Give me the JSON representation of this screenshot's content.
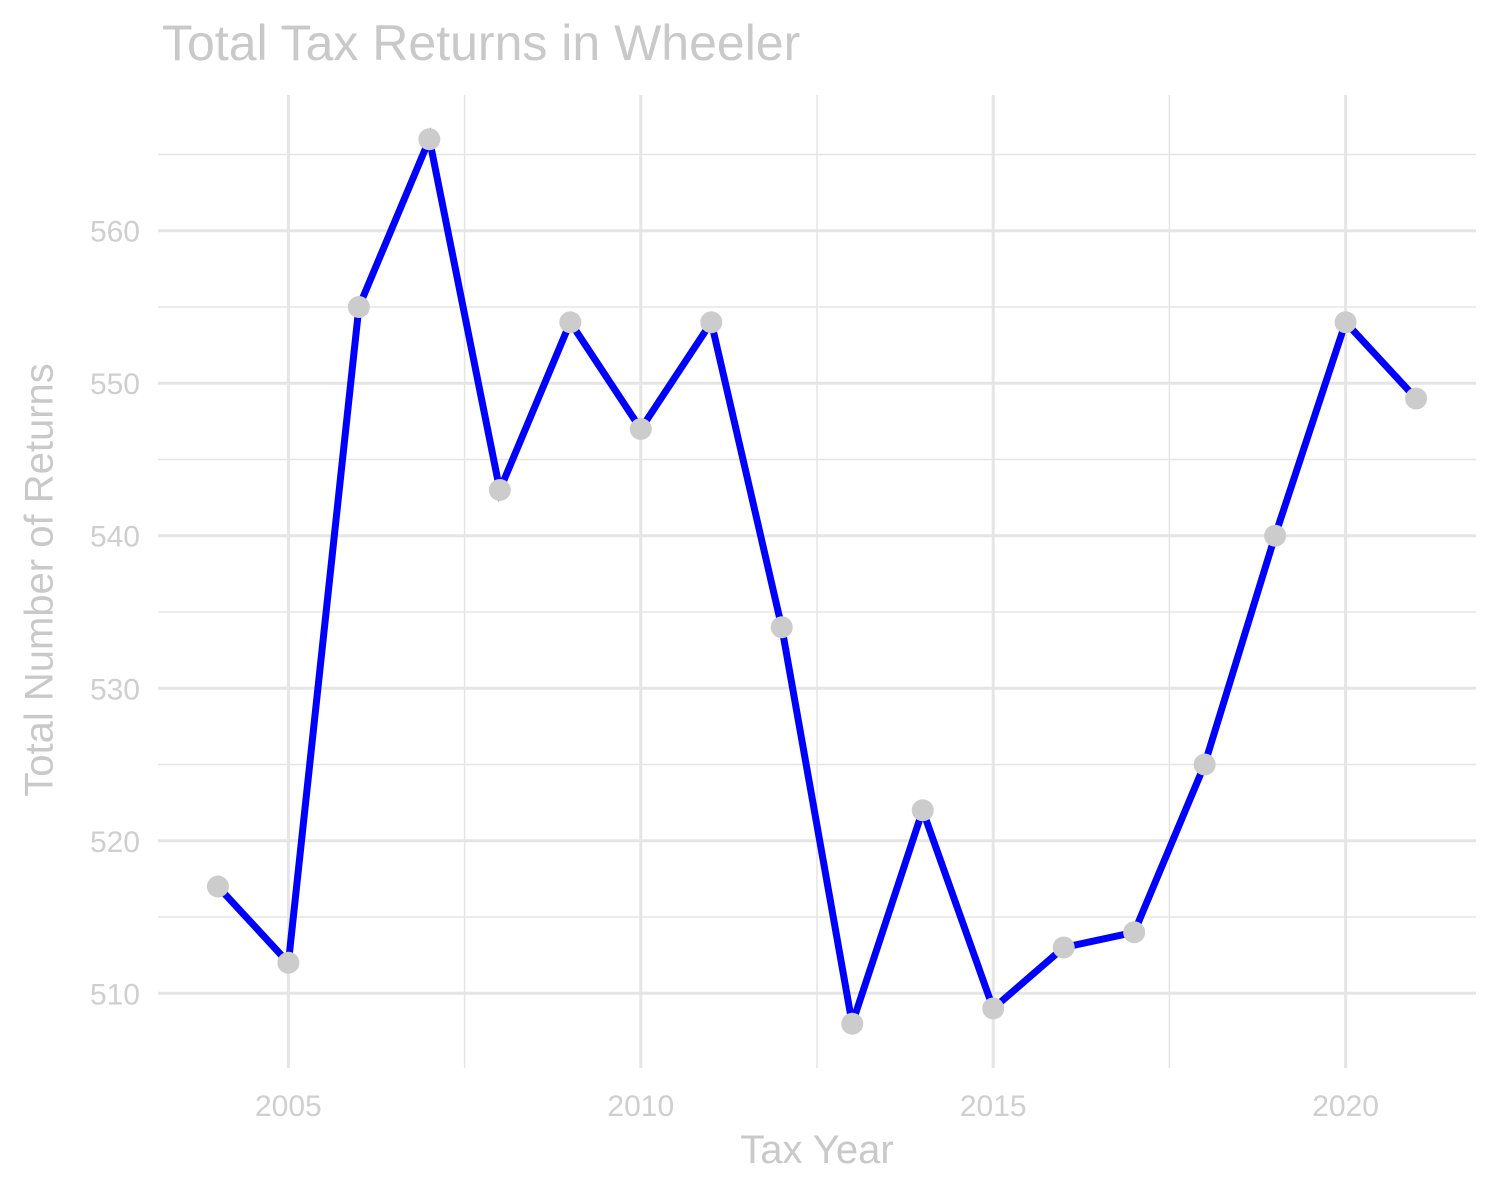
{
  "chart_data": {
    "type": "line",
    "title": "Total Tax Returns in Wheeler",
    "xlabel": "Tax Year",
    "ylabel": "Total Number of Returns",
    "x": [
      2004,
      2005,
      2006,
      2007,
      2008,
      2009,
      2010,
      2011,
      2012,
      2013,
      2014,
      2015,
      2016,
      2017,
      2018,
      2019,
      2020,
      2021
    ],
    "series": [
      {
        "values": [
          517,
          512,
          555,
          566,
          543,
          554,
          547,
          554,
          534,
          508,
          522,
          509,
          513,
          514,
          525,
          540,
          554,
          549
        ]
      }
    ],
    "xlim": [
      2003.15,
      2021.85
    ],
    "ylim": [
      505.1,
      568.9
    ],
    "x_ticks": [
      2005,
      2010,
      2015,
      2020
    ],
    "x_tick_labels": [
      "2005",
      "2010",
      "2015",
      "2020"
    ],
    "y_ticks": [
      510,
      520,
      530,
      540,
      550,
      560
    ],
    "y_tick_labels": [
      "510",
      "520",
      "530",
      "540",
      "550",
      "560"
    ],
    "grid": true,
    "legend": "none",
    "colors": {
      "line": "#0000ff",
      "points": "#cccccc",
      "grid": "#e5e5e5",
      "text": "#cccccc"
    }
  }
}
